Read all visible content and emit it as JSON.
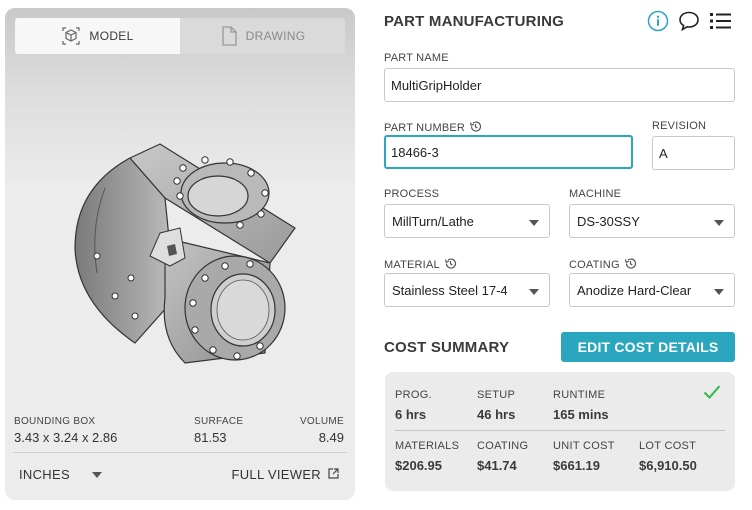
{
  "viewer": {
    "tabs": [
      {
        "label": "MODEL",
        "icon": "cube-icon",
        "active": true
      },
      {
        "label": "DRAWING",
        "icon": "document-icon",
        "active": false
      }
    ],
    "stats": {
      "bounding_box_label": "BOUNDING BOX",
      "bounding_box_value": "3.43 x 3.24 x 2.86",
      "surface_label": "SURFACE",
      "surface_value": "81.53",
      "volume_label": "VOLUME",
      "volume_value": "8.49"
    },
    "units_value": "INCHES",
    "full_viewer_label": "FULL VIEWER"
  },
  "header": {
    "title": "PART MANUFACTURING",
    "icons": [
      "info-icon",
      "comment-icon",
      "list-icon"
    ],
    "accent_color": "#2aa6bf"
  },
  "form": {
    "part_name_label": "PART NAME",
    "part_name_value": "MultiGripHolder",
    "part_number_label": "PART NUMBER",
    "part_number_value": "18466-3",
    "revision_label": "REVISION",
    "revision_value": "A",
    "process_label": "PROCESS",
    "process_value": "MillTurn/Lathe",
    "machine_label": "MACHINE",
    "machine_value": "DS-30SSY",
    "material_label": "MATERIAL",
    "material_value": "Stainless Steel 17-4",
    "coating_label": "COATING",
    "coating_value": "Anodize Hard-Clear"
  },
  "cost": {
    "title": "COST SUMMARY",
    "edit_button": "EDIT COST DETAILS",
    "status_color": "#2db84b",
    "row1": [
      {
        "label": "PROG.",
        "value": "6 hrs"
      },
      {
        "label": "SETUP",
        "value": "46 hrs"
      },
      {
        "label": "RUNTIME",
        "value": "165 mins"
      }
    ],
    "row2": [
      {
        "label": "MATERIALS",
        "value": "$206.95"
      },
      {
        "label": "COATING",
        "value": "$41.74"
      },
      {
        "label": "UNIT COST",
        "value": "$661.19"
      },
      {
        "label": "LOT COST",
        "value": "$6,910.50"
      }
    ]
  }
}
